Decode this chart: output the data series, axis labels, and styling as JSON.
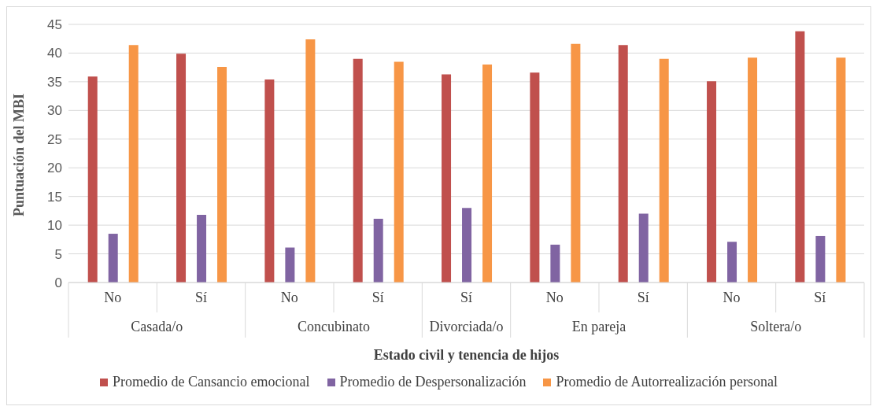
{
  "chart_data": {
    "type": "bar",
    "xlabel": "Estado civil y tenencia de hijos",
    "ylabel": "Puntuación del MBI",
    "categories": [
      "No",
      "Sí",
      "No",
      "Sí",
      "Sí",
      "No",
      "Sí",
      "No",
      "Sí"
    ],
    "series": [
      {
        "name": "Promedio de Cansancio emocional",
        "color": "#c0504d",
        "values": [
          35.9,
          39.9,
          35.4,
          39.0,
          36.3,
          36.6,
          41.4,
          35.1,
          43.8
        ]
      },
      {
        "name": "Promedio de Despersonalización",
        "color": "#8064a2",
        "values": [
          8.5,
          11.8,
          6.1,
          11.1,
          13.0,
          6.6,
          12.0,
          7.1,
          8.1
        ]
      },
      {
        "name": "Promedio de Autorrealización personal",
        "color": "#f79646",
        "values": [
          41.4,
          37.6,
          42.4,
          38.5,
          38.0,
          41.6,
          39.0,
          39.2,
          39.2
        ]
      }
    ],
    "annotations": [
      "Casada/o",
      "Concubinato",
      "Divorciada/o",
      "En pareja",
      "Soltera/o"
    ],
    "ylim": [
      0,
      45
    ],
    "yticks": [
      0,
      5,
      10,
      15,
      20,
      25,
      30,
      35,
      40,
      45
    ],
    "grid": "y",
    "legend": "bottom"
  }
}
